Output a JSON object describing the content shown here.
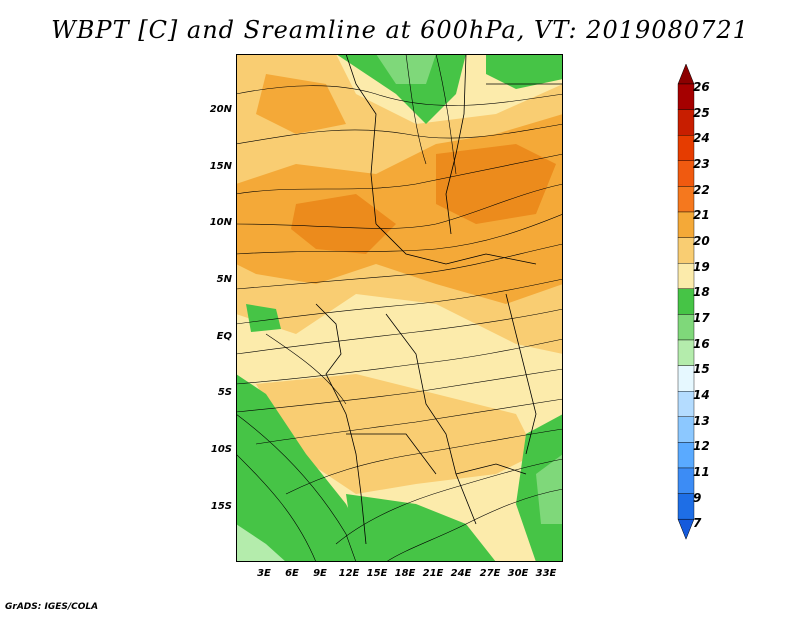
{
  "title": "WBPT [C] and Sreamline at 600hPa, VT: 2019080721",
  "footer": "GrADS: IGES/COLA",
  "map": {
    "y_axis_labels": [
      "20N",
      "15N",
      "10N",
      "5N",
      "EQ",
      "5S",
      "10S",
      "15S"
    ],
    "x_axis_labels": [
      "3E",
      "6E",
      "9E",
      "12E",
      "15E",
      "18E",
      "21E",
      "24E",
      "27E",
      "30E",
      "33E"
    ],
    "colors": {
      "c19": "#fcebab",
      "c20": "#f9cd72",
      "c21": "#f4a938",
      "c22": "#ec8b1c",
      "c18": "#46c446",
      "c17": "#7fd87a",
      "c16": "#b4ecac",
      "stream": "#000000",
      "border": "#000000"
    }
  },
  "colorbar": {
    "labels": [
      "26",
      "25",
      "24",
      "23",
      "22",
      "21",
      "20",
      "19",
      "18",
      "17",
      "16",
      "15",
      "14",
      "13",
      "12",
      "11",
      "9",
      "7"
    ],
    "colors": [
      "#a50000",
      "#c81e00",
      "#e63c00",
      "#f05a10",
      "#f5781e",
      "#f4a938",
      "#f9cd72",
      "#fcebab",
      "#46c446",
      "#7fd87a",
      "#b4ecac",
      "#e6f8ff",
      "#b4dcff",
      "#8cc8ff",
      "#5aaaff",
      "#3c8cf5",
      "#1e6ee6"
    ],
    "top_arrow_color": "#8c0000",
    "bottom_arrow_color": "#145adc"
  }
}
